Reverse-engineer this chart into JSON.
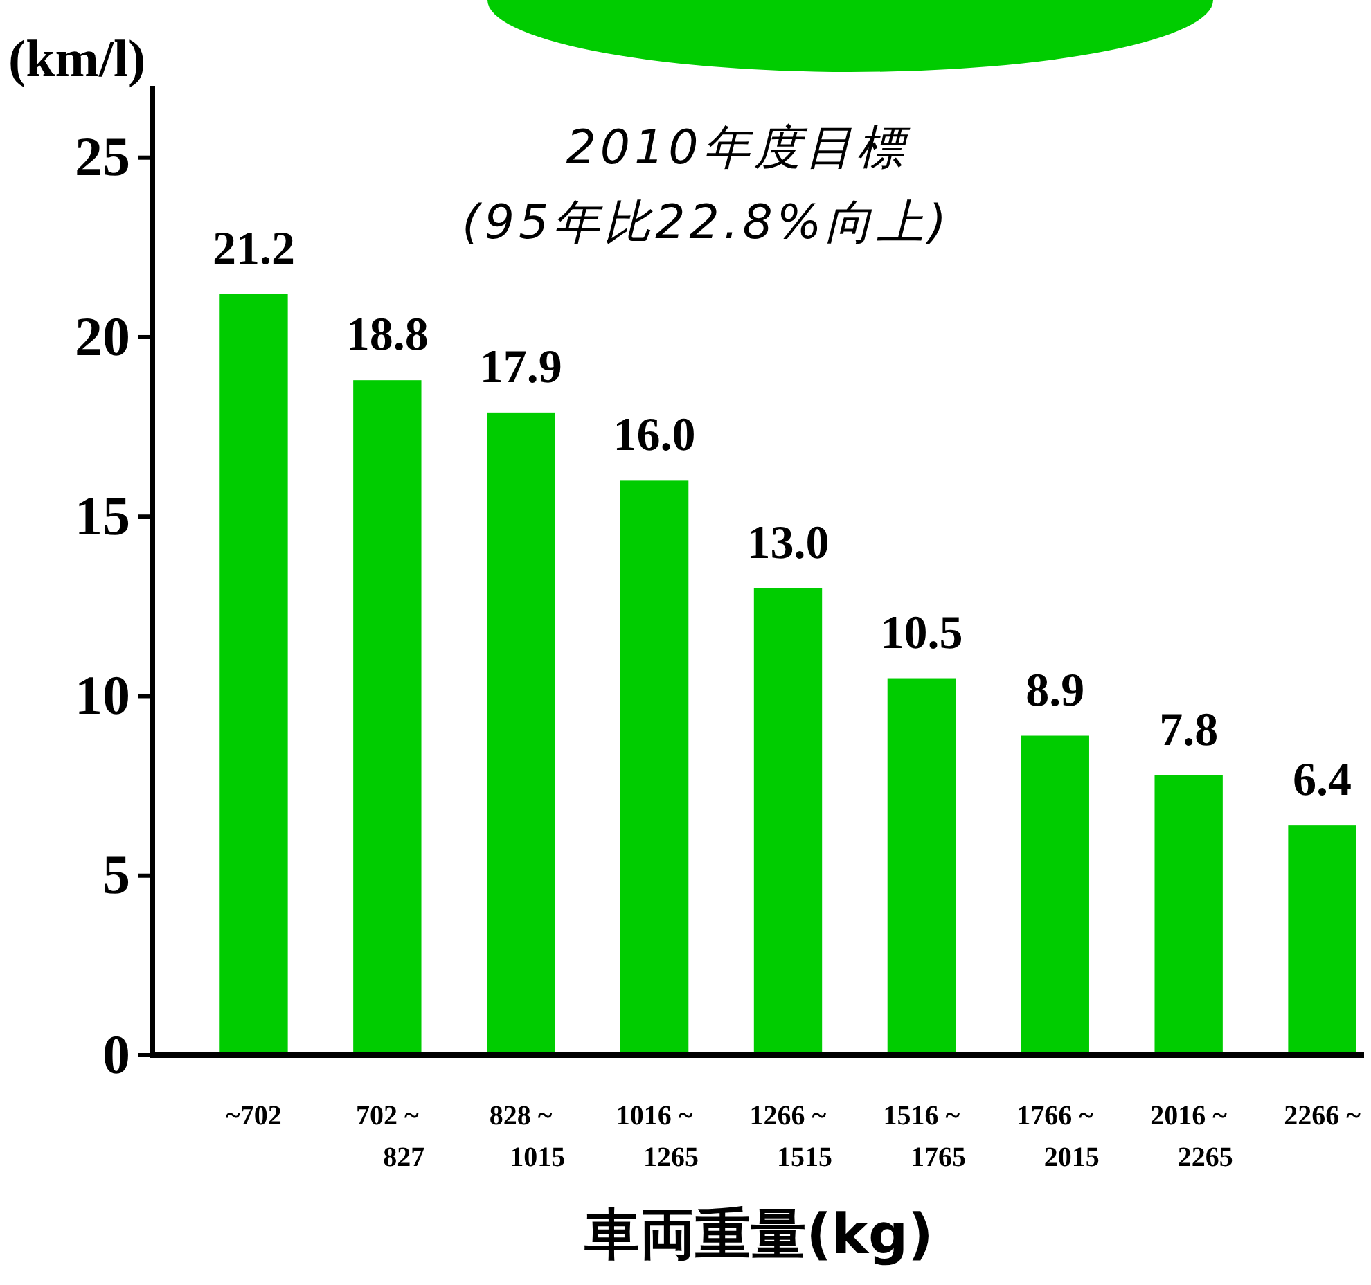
{
  "chart_data": {
    "type": "bar",
    "title": "2010年度目標",
    "subtitle": "(95年比22.8%向上)",
    "ylabel": "(km/l)",
    "xlabel": "車両重量(kg)",
    "categories": [
      "~702",
      "702 ~\n827",
      "828 ~\n1015",
      "1016 ~\n1265",
      "1266 ~\n1515",
      "1516 ~\n1765",
      "1766 ~\n2015",
      "2016 ~\n2265",
      "2266 ~"
    ],
    "values": [
      21.2,
      18.8,
      17.9,
      16.0,
      13.0,
      10.5,
      8.9,
      7.8,
      6.4
    ],
    "value_labels": [
      "21.2",
      "18.8",
      "17.9",
      "16.0",
      "13.0",
      "10.5",
      "8.9",
      "7.8",
      "6.4"
    ],
    "color": "#00cc00",
    "ylim": [
      0,
      27
    ],
    "yticks": [
      0,
      5,
      10,
      15,
      20,
      25
    ],
    "grid": false
  }
}
